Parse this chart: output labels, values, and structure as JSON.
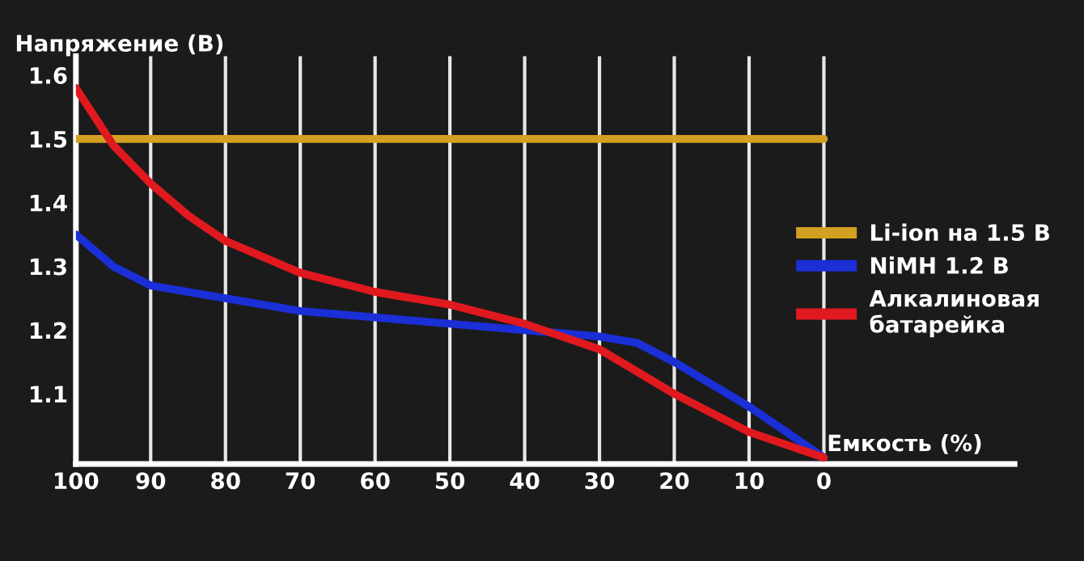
{
  "chart_data": {
    "type": "line",
    "ylabel": "Напряжение (В)",
    "xlabel": "Емкость (%)",
    "xlim": [
      100,
      -25.5
    ],
    "ylim": [
      0.99,
      1.63
    ],
    "xticks": [
      100,
      90,
      80,
      70,
      60,
      50,
      40,
      30,
      20,
      10,
      0
    ],
    "yticks": [
      1.1,
      1.2,
      1.3,
      1.4,
      1.5,
      1.6
    ],
    "grid": "x",
    "legend": "right",
    "marker": "none",
    "line_style": "solid",
    "series": [
      {
        "name": "Li-ion на 1.5 В",
        "color": "#d4a021",
        "x": [
          100,
          0
        ],
        "values": [
          1.5,
          1.5
        ]
      },
      {
        "name": "NiMH 1.2 В",
        "color": "#1a2fd6",
        "x": [
          100,
          95,
          90,
          80,
          70,
          60,
          50,
          40,
          30,
          25,
          20,
          10,
          0
        ],
        "values": [
          1.35,
          1.3,
          1.27,
          1.25,
          1.23,
          1.22,
          1.21,
          1.2,
          1.19,
          1.18,
          1.15,
          1.08,
          1.0
        ]
      },
      {
        "name": "Алкалиновая\nбатарейка",
        "color": "#e0191f",
        "x": [
          100,
          95,
          90,
          85,
          80,
          70,
          60,
          50,
          40,
          30,
          20,
          10,
          0
        ],
        "values": [
          1.58,
          1.49,
          1.43,
          1.38,
          1.34,
          1.29,
          1.26,
          1.24,
          1.21,
          1.17,
          1.1,
          1.04,
          1.0
        ]
      }
    ]
  }
}
